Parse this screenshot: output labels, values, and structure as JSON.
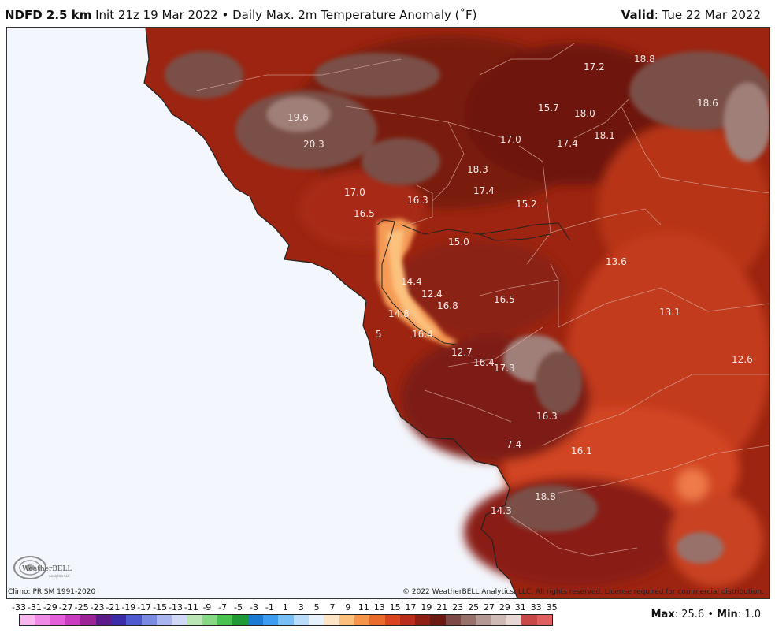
{
  "header": {
    "product": "NDFD 2.5 km",
    "init": "Init 21z 19 Mar 2022",
    "bullet": "•",
    "field": "Daily Max. 2m Temperature Anomaly (˚F)",
    "valid_label": "Valid",
    "valid_value": ": Tue 22 Mar 2022"
  },
  "map": {
    "labels": [
      "17.2",
      "18.8",
      "18.6",
      "19.6",
      "15.7",
      "18.0",
      "20.3",
      "17.0",
      "17.4",
      "18.1",
      "18.3",
      "17.0",
      "17.4",
      "16.3",
      "15.2",
      "16.5",
      "15.0",
      "13.6",
      "14.4",
      "12.4",
      "16.8",
      "16.5",
      "13.1",
      "14.8",
      "16.4",
      "12.7",
      "5",
      "16.4",
      "17.3",
      "12.6",
      "16.3",
      "7.4",
      "16.1",
      "18.8",
      "14.3"
    ]
  },
  "footer": {
    "climo": "Climo: PRISM 1991-2020",
    "copyright": "© 2022 WeatherBELL Analytics, LLC. All rights reserved. License required for commercial distribution.",
    "logo_text": "WeatherBELL",
    "logo_sub": "Analytics LLC"
  },
  "colorbar": {
    "ticks": [
      "-33",
      "-31",
      "-29",
      "-27",
      "-25",
      "-23",
      "-21",
      "-19",
      "-17",
      "-15",
      "-13",
      "-11",
      "-9",
      "-7",
      "-5",
      "-3",
      "-1",
      "1",
      "3",
      "5",
      "7",
      "9",
      "11",
      "13",
      "15",
      "17",
      "19",
      "21",
      "23",
      "25",
      "27",
      "29",
      "31",
      "33",
      "35"
    ],
    "colors": [
      "#f7b6f0",
      "#ef8be6",
      "#e45fd9",
      "#c93bbf",
      "#9a2396",
      "#5b1c8a",
      "#3b2ca8",
      "#4e58cf",
      "#7a8ae0",
      "#a9b5ef",
      "#cfd8f6",
      "#b9e6b4",
      "#86d884",
      "#49c24f",
      "#1f9a36",
      "#1b7bd4",
      "#3c9cf0",
      "#78bff6",
      "#b8dcfa",
      "#e7f1fb",
      "#fde4c4",
      "#fbc07c",
      "#f6944a",
      "#ea6a2c",
      "#d9441f",
      "#b92c1b",
      "#8f1f15",
      "#6b1a12",
      "#7d4b45",
      "#98716b",
      "#b49893",
      "#cfbab6",
      "#e7d7d4",
      "#c84848",
      "#e06060"
    ],
    "max_label": "Max",
    "max_value": ": 25.6",
    "min_label": "Min",
    "min_value": ": 1.0"
  },
  "colors": {
    "ocean": "#f3f7fd",
    "anomaly_dark": "#6e1410",
    "anomaly_mid": "#a8260f",
    "anomaly_hot": "#d3411f",
    "anomaly_light": "#f5a35a",
    "terrain_brown": "#7a4f47"
  }
}
